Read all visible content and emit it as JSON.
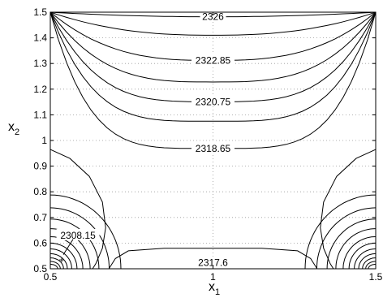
{
  "chart_data": {
    "type": "contour",
    "title": "",
    "xlabel": "x",
    "xlabel_subscript": "1",
    "ylabel": "x",
    "ylabel_subscript": "2",
    "xlim": [
      0.5,
      1.5
    ],
    "ylim": [
      0.5,
      1.5
    ],
    "grid": true,
    "x_ticks": [
      0.5,
      1,
      1.5
    ],
    "x_tick_labels": [
      "0.5",
      "1",
      "1.5"
    ],
    "y_ticks": [
      0.5,
      0.6,
      0.7,
      0.8,
      0.9,
      1,
      1.1,
      1.2,
      1.3,
      1.4,
      1.5
    ],
    "y_tick_labels": [
      "0.5",
      "0.6",
      "0.7",
      "0.8",
      "0.9",
      "1",
      "1.1",
      "1.2",
      "1.3",
      "1.4",
      "1.5"
    ],
    "level_labels": [
      {
        "text": "2326",
        "x": 1.0,
        "y": 1.482
      },
      {
        "text": "2322.85",
        "x": 1.0,
        "y": 1.312
      },
      {
        "text": "2320.75",
        "x": 1.0,
        "y": 1.151
      },
      {
        "text": "2318.65",
        "x": 1.0,
        "y": 0.969
      },
      {
        "text": "2308.15",
        "x": 0.585,
        "y": 0.63
      },
      {
        "text": "2317.6",
        "x": 1.0,
        "y": 0.523
      }
    ]
  }
}
